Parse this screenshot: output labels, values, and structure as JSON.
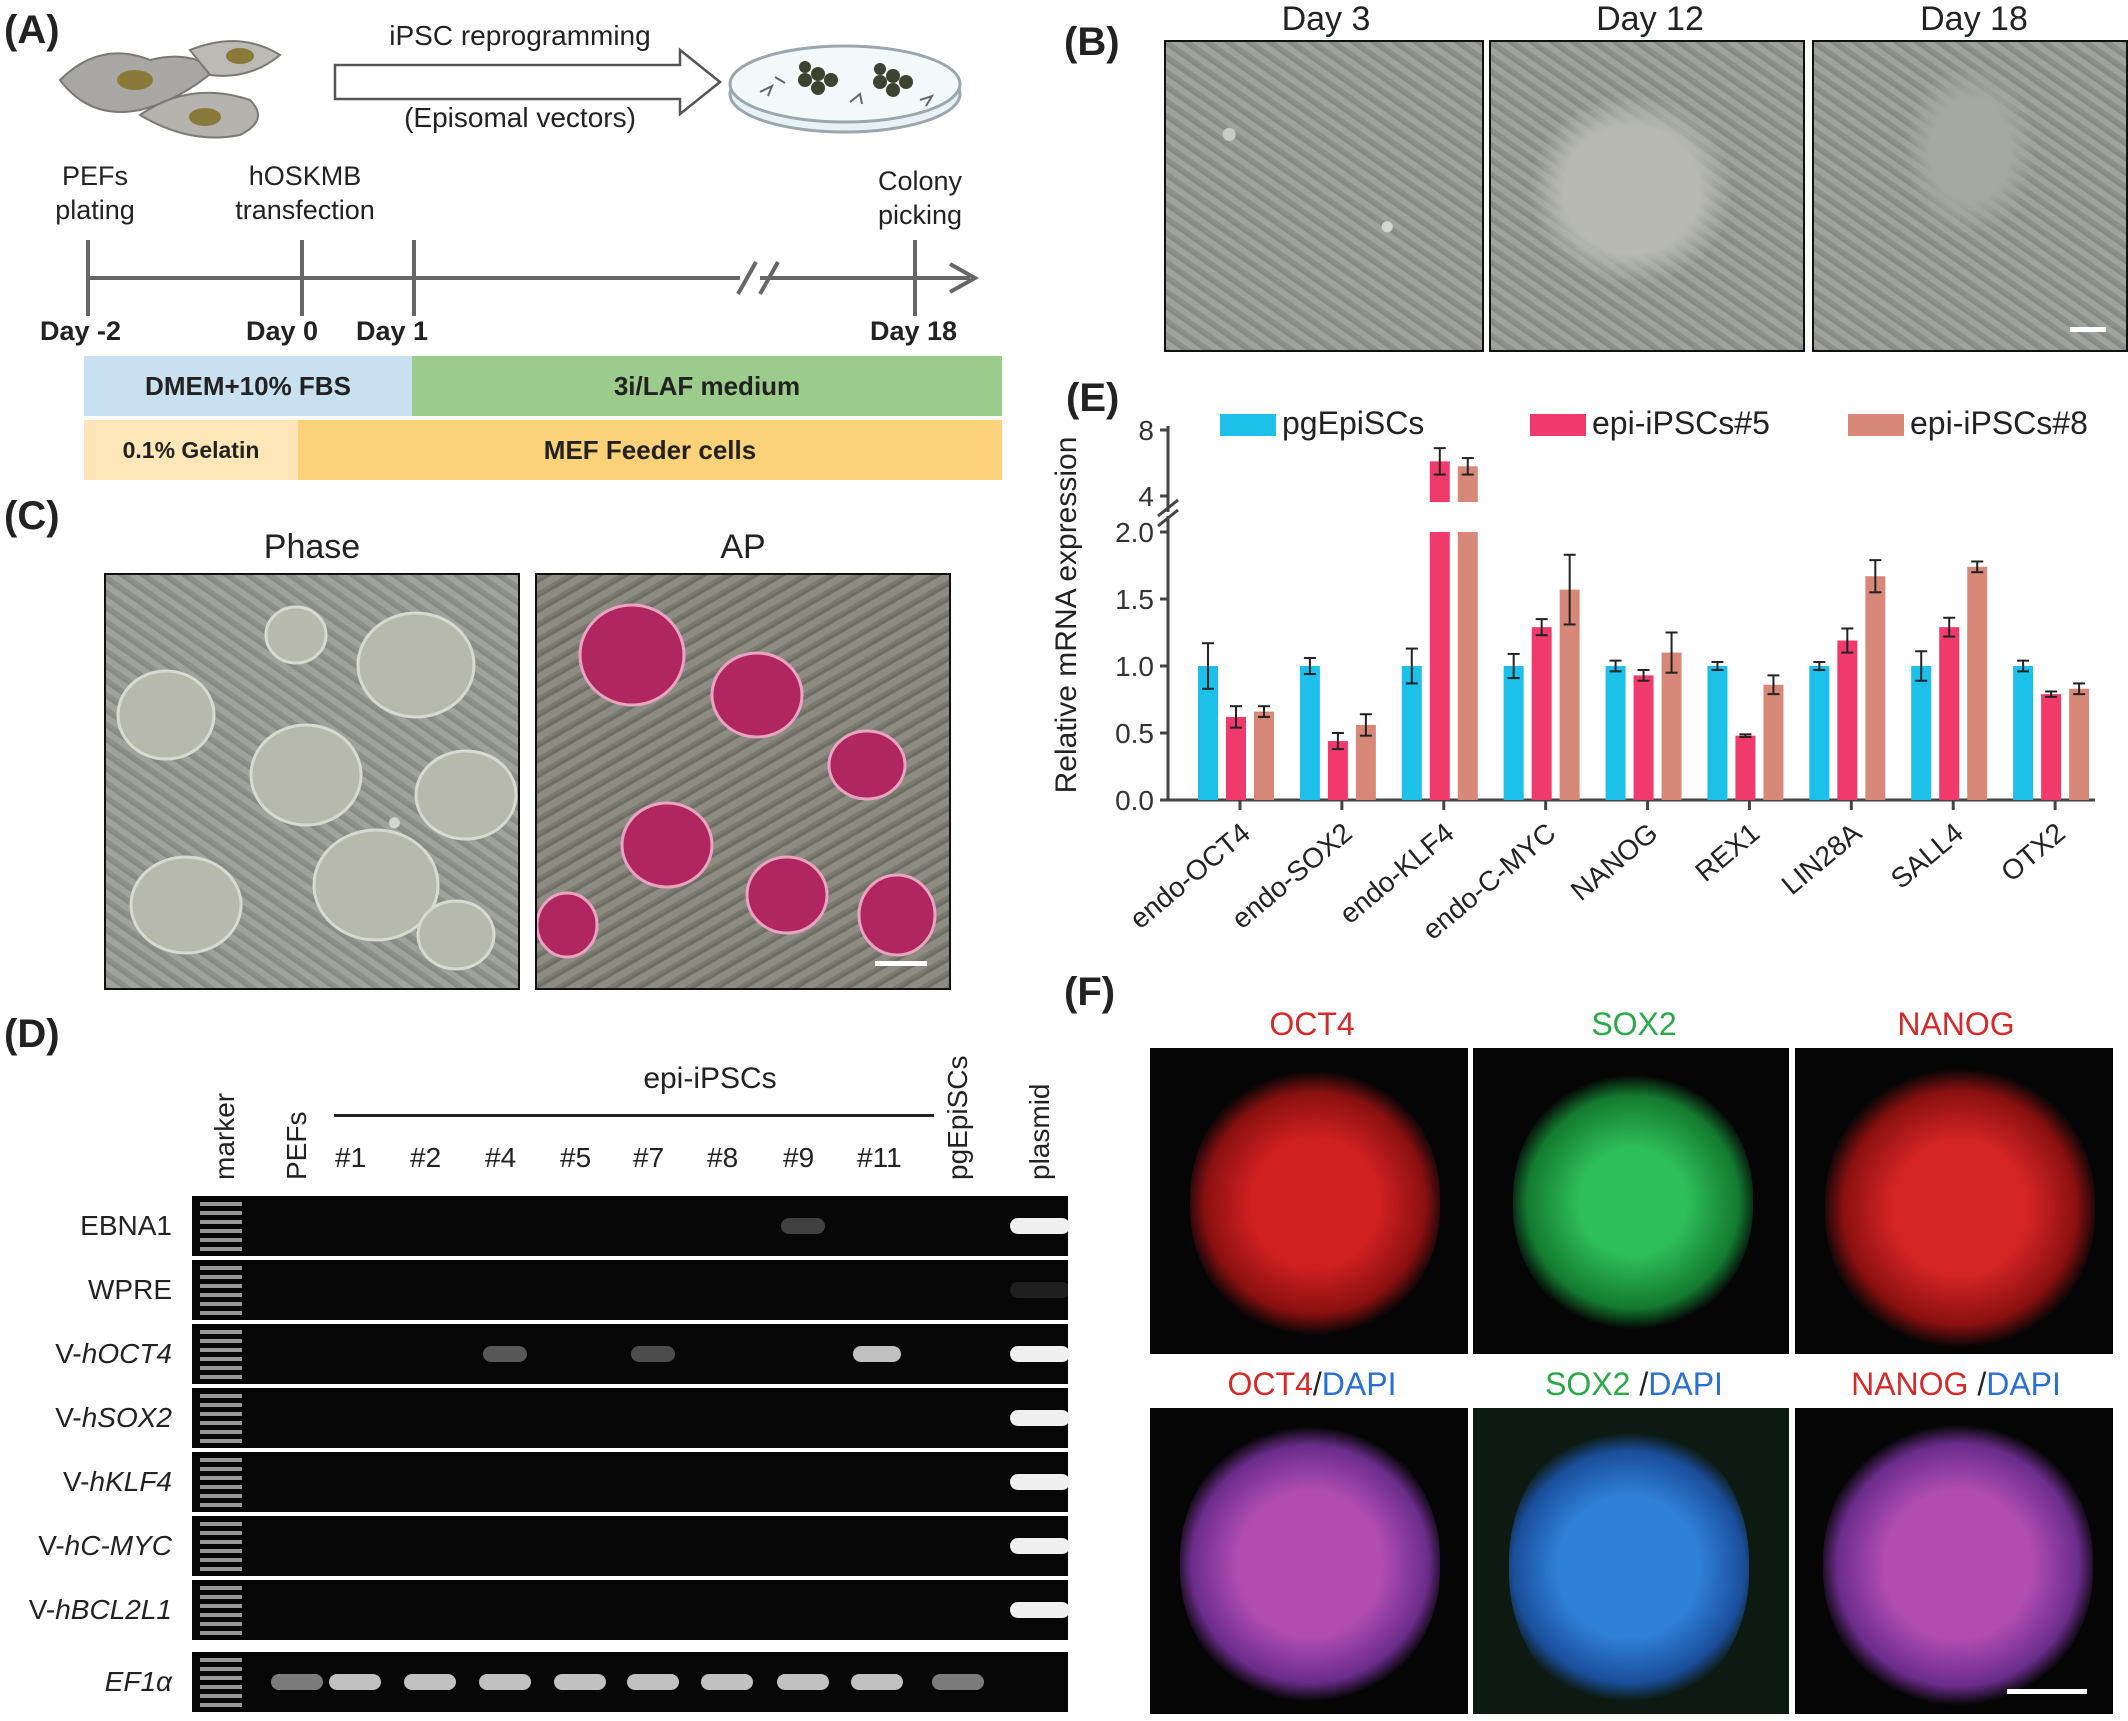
{
  "panels": {
    "A": "(A)",
    "B": "(B)",
    "C": "(C)",
    "D": "(D)",
    "E": "(E)",
    "F": "(F)"
  },
  "panel_a": {
    "arrow_top": "iPSC reprogramming",
    "arrow_bottom": "(Episomal vectors)",
    "events": [
      {
        "label": "PEFs\nplating",
        "day": "Day -2"
      },
      {
        "label": "hOSKMB\ntransfection",
        "day": "Day 0"
      },
      {
        "label": "",
        "day": "Day 1"
      },
      {
        "label": "Colony\npicking",
        "day": "Day 18"
      }
    ],
    "media": [
      {
        "label": "DMEM+10% FBS",
        "color": "#c8e0f0"
      },
      {
        "label": "3i/LAF medium",
        "color": "#9ccc8c"
      }
    ],
    "substrate": [
      {
        "label": "0.1% Gelatin",
        "color": "#fde6b8"
      },
      {
        "label": "MEF Feeder cells",
        "color": "#fbd27a"
      }
    ]
  },
  "panel_b": {
    "titles": [
      "Day 3",
      "Day 12",
      "Day 18"
    ]
  },
  "panel_c": {
    "titles": [
      "Phase",
      "AP"
    ]
  },
  "panel_d": {
    "group_label": "epi-iPSCs",
    "lanes": [
      "marker",
      "PEFs",
      "#1",
      "#2",
      "#4",
      "#5",
      "#7",
      "#8",
      "#9",
      "#11",
      "pgEpiSCs",
      "plasmid"
    ],
    "rows": [
      {
        "prefix": "EBNA1",
        "italic": ""
      },
      {
        "prefix": "WPRE",
        "italic": ""
      },
      {
        "prefix": "V-",
        "italic": "hOCT4"
      },
      {
        "prefix": "V-",
        "italic": "hSOX2"
      },
      {
        "prefix": "V-",
        "italic": "hKLF4"
      },
      {
        "prefix": "V-",
        "italic": "hC-MYC"
      },
      {
        "prefix": "V-",
        "italic": "hBCL2L1"
      },
      {
        "prefix": "",
        "italic": "EF1α"
      }
    ]
  },
  "panel_f": {
    "top": [
      "OCT4",
      "SOX2",
      "NANOG"
    ],
    "bottom": [
      {
        "marker": "OCT4",
        "sep": "/",
        "dapi": "DAPI"
      },
      {
        "marker": "SOX2",
        "sep": " /",
        "dapi": "DAPI"
      },
      {
        "marker": "NANOG",
        "sep": " /",
        "dapi": "DAPI"
      }
    ],
    "colors": {
      "red": "#d42a2a",
      "green": "#2aa84a",
      "blue": "#2a6fd4"
    }
  },
  "chart_data": {
    "type": "bar",
    "title": "",
    "xlabel": "",
    "ylabel": "Relative mRNA expression",
    "categories": [
      "endo-OCT4",
      "endo-SOX2",
      "endo-KLF4",
      "endo-C-MYC",
      "NANOG",
      "REX1",
      "LIN28A",
      "SALL4",
      "OTX2"
    ],
    "series": [
      {
        "name": "pgEpiSCs",
        "color": "#1cc0e8",
        "values": [
          1.0,
          1.0,
          1.0,
          1.0,
          1.0,
          1.0,
          1.0,
          1.0,
          1.0
        ],
        "errors": [
          0.17,
          0.06,
          0.13,
          0.09,
          0.04,
          0.03,
          0.03,
          0.11,
          0.04
        ]
      },
      {
        "name": "epi-iPSCs#5",
        "color": "#f03a6c",
        "values": [
          0.62,
          0.44,
          6.1,
          1.29,
          0.93,
          0.48,
          1.19,
          1.29,
          0.79
        ],
        "errors": [
          0.08,
          0.06,
          0.8,
          0.06,
          0.04,
          0.01,
          0.09,
          0.07,
          0.02
        ]
      },
      {
        "name": "epi-iPSCs#8",
        "color": "#d88878",
        "values": [
          0.66,
          0.56,
          5.8,
          1.57,
          1.1,
          0.86,
          1.67,
          1.74,
          0.83
        ],
        "errors": [
          0.04,
          0.08,
          0.5,
          0.26,
          0.15,
          0.07,
          0.12,
          0.04,
          0.04
        ]
      }
    ],
    "axis_break": {
      "lower_max": 2.0,
      "upper_ticks": [
        "4",
        "8"
      ]
    },
    "yticks": [
      "0.0",
      "0.5",
      "1.0",
      "1.5",
      "2.0"
    ],
    "ylim": [
      0,
      8
    ],
    "legend": "top"
  }
}
